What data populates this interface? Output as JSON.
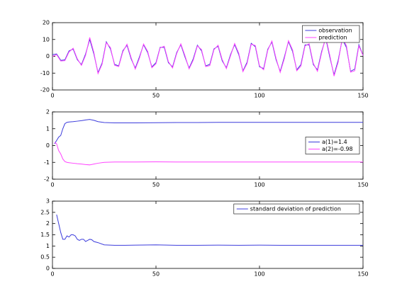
{
  "chart_data": [
    {
      "type": "line",
      "xlim": [
        0,
        150
      ],
      "xticks": [
        0,
        50,
        100,
        150
      ],
      "ylim": [
        -20,
        20
      ],
      "yticks": [
        -20,
        -10,
        0,
        10,
        20
      ],
      "legend": "upper right",
      "x": [
        0,
        2,
        4,
        6,
        8,
        10,
        12,
        14,
        16,
        18,
        20,
        22,
        24,
        26,
        28,
        30,
        32,
        34,
        36,
        38,
        40,
        42,
        44,
        46,
        48,
        50,
        52,
        54,
        56,
        58,
        60,
        62,
        64,
        66,
        68,
        70,
        72,
        74,
        76,
        78,
        80,
        82,
        84,
        86,
        88,
        90,
        92,
        94,
        96,
        98,
        100,
        102,
        104,
        106,
        108,
        110,
        112,
        114,
        116,
        118,
        120,
        122,
        124,
        126,
        128,
        130,
        132,
        134,
        136,
        138,
        140,
        142,
        144,
        146,
        148,
        150
      ],
      "series": [
        {
          "name": "observation",
          "color": "#3c3cdc",
          "values": [
            1.0,
            1.4,
            -2.4,
            -2.1,
            3.2,
            4.3,
            -2.0,
            -4.9,
            1.4,
            10.0,
            1.4,
            -9.7,
            -3.9,
            8.6,
            4.4,
            -4.8,
            -5.7,
            3.3,
            6.6,
            -1.5,
            -7.0,
            -0.4,
            6.9,
            2.2,
            -6.3,
            -3.8,
            5.3,
            5.3,
            -3.8,
            -6.3,
            2.2,
            6.9,
            -0.4,
            -7.0,
            -1.5,
            6.6,
            3.3,
            -5.7,
            -4.8,
            4.4,
            6.0,
            -2.7,
            -6.8,
            1.0,
            7.0,
            1.0,
            -8.7,
            -3.5,
            7.7,
            5.7,
            -6.2,
            -7.3,
            4.2,
            8.5,
            -2.0,
            -9.0,
            -0.5,
            8.8,
            2.8,
            -8.1,
            -4.9,
            6.8,
            6.8,
            -4.9,
            -8.1,
            2.8,
            10.8,
            -0.7,
            -11.0,
            -2.4,
            10.3,
            5.2,
            -8.9,
            -7.6,
            6.9,
            0.5
          ]
        },
        {
          "name": "prediction",
          "color": "#ff44ff",
          "values": [
            0,
            1.0,
            -2.8,
            -2.6,
            2.6,
            4.8,
            -1.5,
            -5.4,
            0.6,
            11.2,
            2.3,
            -10.3,
            -4.6,
            8.1,
            5.2,
            -5.3,
            -6.1,
            2.7,
            7.2,
            -0.8,
            -7.6,
            -1.2,
            7.3,
            2.9,
            -6.8,
            -4.4,
            5.0,
            6.0,
            -3.2,
            -6.9,
            1.6,
            7.4,
            0.4,
            -7.5,
            -2.3,
            6.2,
            4.0,
            -6.1,
            -5.5,
            3.9,
            6.6,
            -2.0,
            -7.3,
            0.3,
            7.6,
            1.8,
            -9.1,
            -4.3,
            7.2,
            6.4,
            -5.7,
            -8.0,
            3.6,
            9.1,
            -1.2,
            -9.6,
            -1.4,
            9.3,
            3.7,
            -8.6,
            -5.8,
            6.2,
            7.5,
            -4.2,
            -8.9,
            2.0,
            11.5,
            0.3,
            -11.8,
            -3.5,
            10.8,
            6.3,
            -9.4,
            -8.6,
            6.2,
            0.5
          ]
        }
      ]
    },
    {
      "type": "line",
      "xlim": [
        0,
        150
      ],
      "xticks": [
        0,
        50,
        100,
        150
      ],
      "ylim": [
        -2,
        2
      ],
      "yticks": [
        -2,
        -1,
        0,
        1,
        2
      ],
      "legend": "center right",
      "x": [
        1,
        2,
        3,
        4,
        5,
        6,
        7,
        8,
        10,
        12,
        14,
        16,
        18,
        20,
        22,
        25,
        30,
        40,
        50,
        60,
        70,
        80,
        90,
        100,
        110,
        120,
        130,
        140,
        150
      ],
      "series": [
        {
          "name": "a(1)=1.4",
          "color": "#3c3cdc",
          "values": [
            0.1,
            0.3,
            0.5,
            0.6,
            1.0,
            1.3,
            1.38,
            1.4,
            1.42,
            1.45,
            1.48,
            1.52,
            1.55,
            1.5,
            1.42,
            1.37,
            1.35,
            1.35,
            1.36,
            1.37,
            1.37,
            1.38,
            1.38,
            1.38,
            1.38,
            1.38,
            1.38,
            1.38,
            1.38
          ]
        },
        {
          "name": "a(2)=-0.98",
          "color": "#ff44ff",
          "values": [
            0.2,
            0.1,
            -0.3,
            -0.5,
            -0.8,
            -0.95,
            -1.0,
            -1.02,
            -1.05,
            -1.08,
            -1.1,
            -1.13,
            -1.15,
            -1.1,
            -1.05,
            -1.0,
            -0.98,
            -0.98,
            -0.97,
            -0.98,
            -0.98,
            -0.98,
            -0.98,
            -0.98,
            -0.98,
            -0.98,
            -0.98,
            -0.98,
            -0.98
          ]
        }
      ]
    },
    {
      "type": "line",
      "xlim": [
        0,
        150
      ],
      "xticks": [
        0,
        50,
        100,
        150
      ],
      "ylim": [
        0,
        3
      ],
      "yticks": [
        0,
        0.5,
        1,
        1.5,
        2,
        2.5,
        3
      ],
      "legend": "upper right",
      "x": [
        2,
        3,
        4,
        5,
        6,
        7,
        8,
        9,
        10,
        11,
        12,
        13,
        14,
        15,
        16,
        17,
        18,
        19,
        20,
        22,
        25,
        30,
        35,
        40,
        50,
        60,
        70,
        80,
        90,
        100,
        110,
        120,
        130,
        140,
        150
      ],
      "series": [
        {
          "name": "standard deviation of prediction",
          "color": "#3c3cdc",
          "values": [
            2.4,
            2.0,
            1.6,
            1.3,
            1.3,
            1.45,
            1.4,
            1.5,
            1.5,
            1.45,
            1.3,
            1.25,
            1.3,
            1.3,
            1.2,
            1.25,
            1.3,
            1.28,
            1.2,
            1.15,
            1.05,
            1.03,
            1.03,
            1.04,
            1.05,
            1.03,
            1.03,
            1.04,
            1.03,
            1.04,
            1.03,
            1.03,
            1.03,
            1.03,
            1.03
          ]
        }
      ]
    }
  ]
}
